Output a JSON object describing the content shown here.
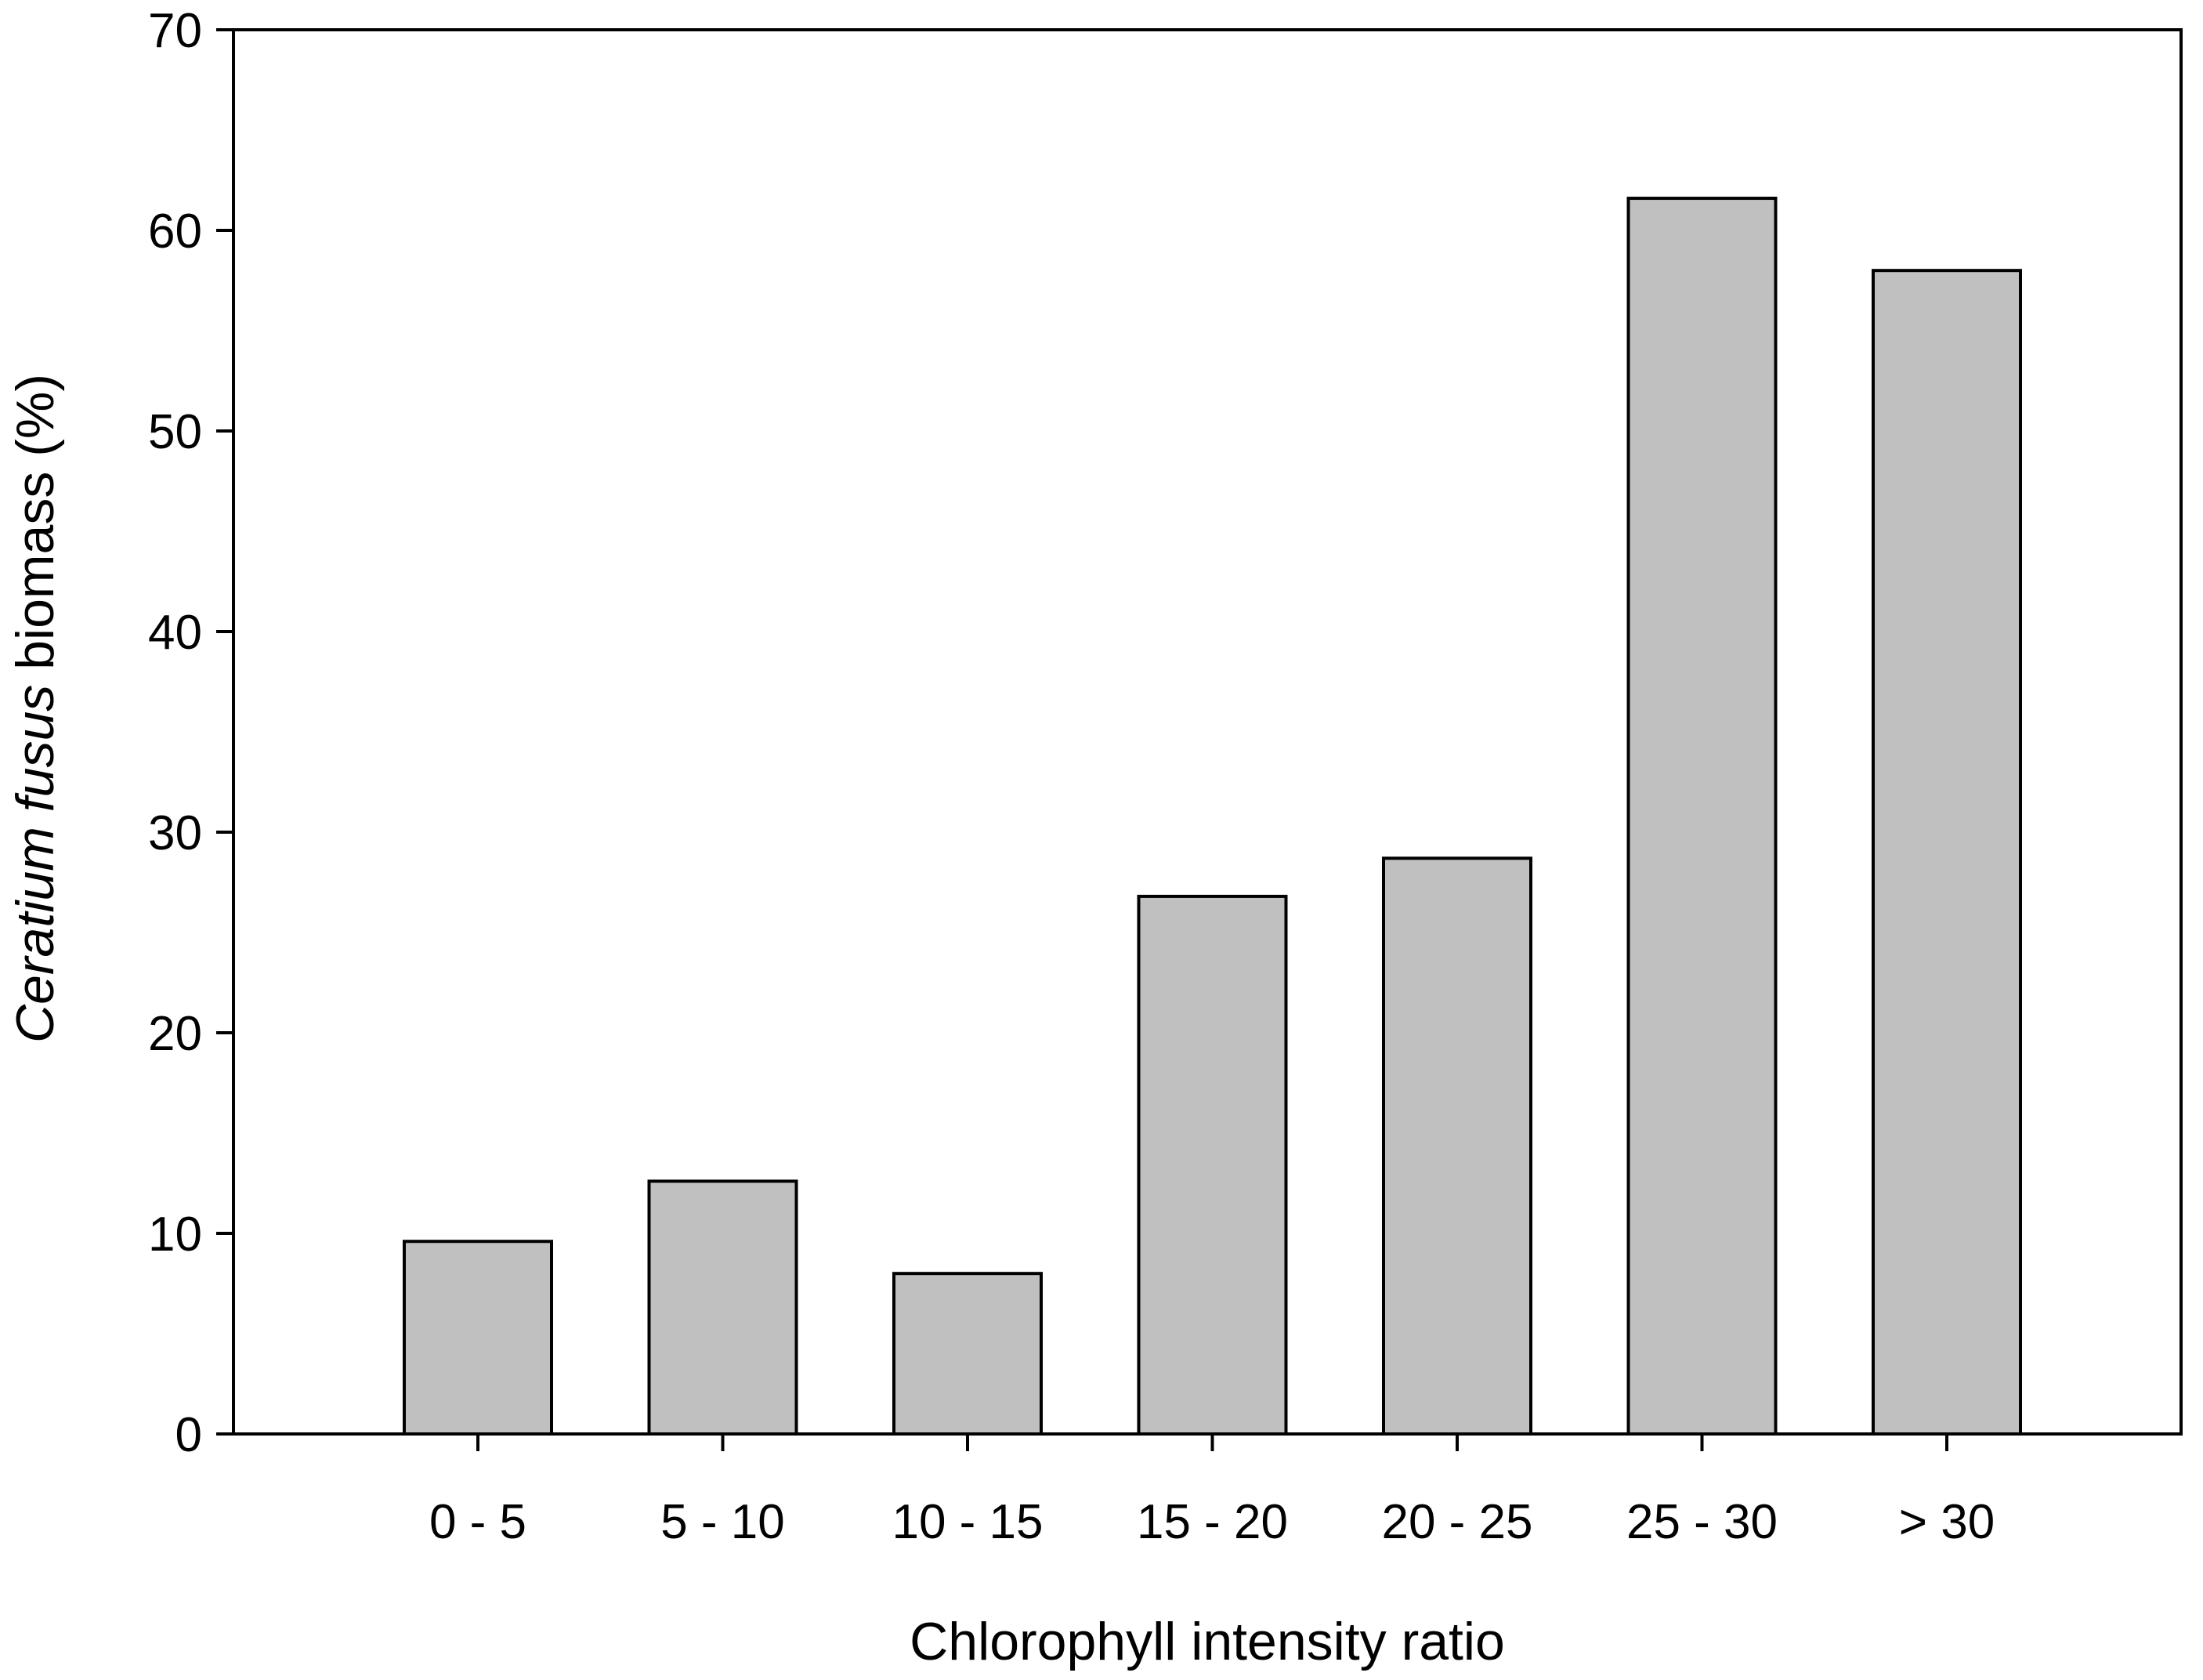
{
  "chart_data": {
    "type": "bar",
    "title": "",
    "xlabel": "Chlorophyll intensity ratio",
    "ylabel_italic": "Ceratium fusus",
    "ylabel_rest": " biomass (%)",
    "categories": [
      "0 - 5",
      "5 - 10",
      "10 - 15",
      "15 - 20",
      "20 - 25",
      "25 - 30",
      "> 30"
    ],
    "values": [
      9.6,
      12.6,
      8.0,
      26.8,
      28.7,
      61.6,
      58.0
    ],
    "ylim": [
      0,
      70
    ],
    "yticks": [
      0,
      10,
      20,
      30,
      40,
      50,
      60,
      70
    ],
    "ytick_labels": [
      "0",
      "10",
      "20",
      "30",
      "40",
      "50",
      "60",
      "70"
    ],
    "grid": false,
    "legend": "none",
    "bar_color": "#c0c0c0",
    "edge_color": "#000000"
  }
}
